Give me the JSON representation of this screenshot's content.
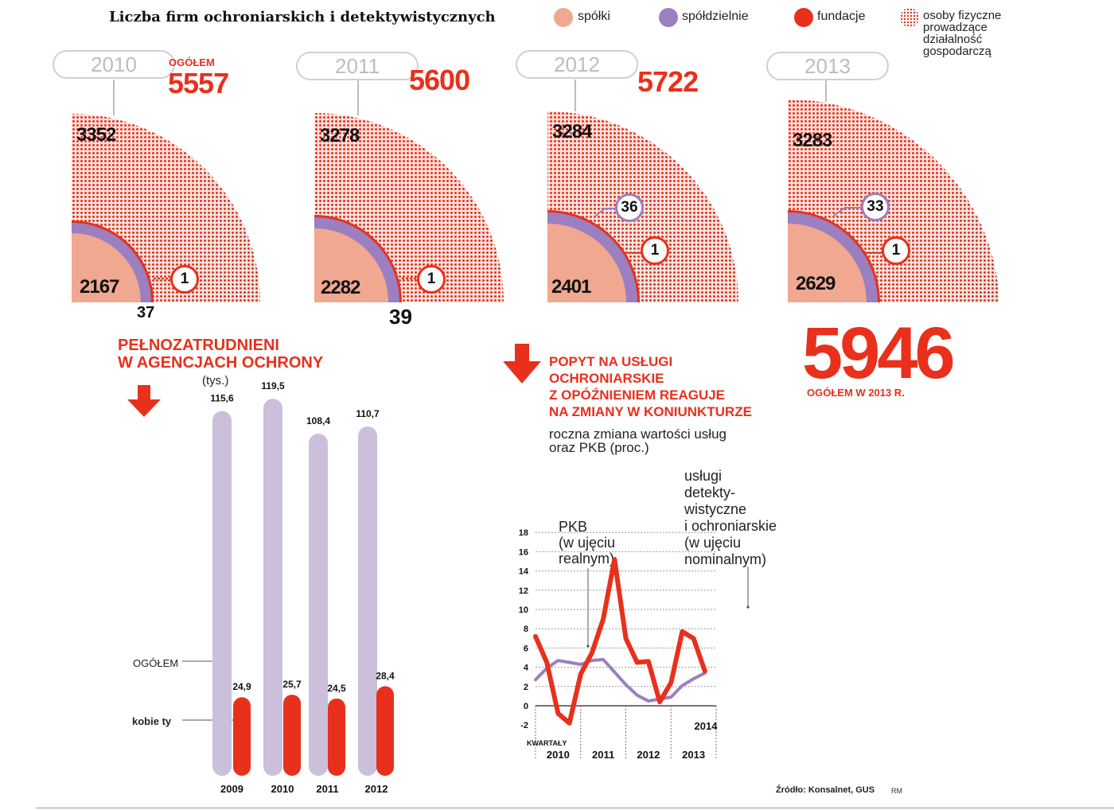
{
  "header": {
    "title": "Liczba firm ochroniarskich i detektywistycznych",
    "legend": [
      {
        "label": "spółki",
        "color": "#f0a890",
        "icon": "salmon-dot-icon"
      },
      {
        "label": "spółdzielnie",
        "color": "#9b7fc0",
        "icon": "purple-dot-icon"
      },
      {
        "label": "fundacje",
        "color": "#e8301c",
        "icon": "red-dot-icon"
      },
      {
        "label_lines": [
          "osoby fizyczne",
          "prowadzące",
          "działalność",
          "gospodarczą"
        ],
        "color": "#e8301c",
        "icon": "dotted-pattern-icon"
      }
    ]
  },
  "colors": {
    "red": "#e8301c",
    "salmon": "#f0a890",
    "purple": "#9b7fc0",
    "lavender": "#cbbfdb",
    "gray": "#d0d0d0"
  },
  "firms": {
    "ogolem_label": "OGÓŁEM",
    "years": [
      {
        "year": "2010",
        "total": "5557",
        "osoby": "3352",
        "spolki": "2167",
        "spoldzielnie": "37",
        "fundacje": "1"
      },
      {
        "year": "2011",
        "total": "5600",
        "osoby": "3278",
        "spolki": "2282",
        "spoldzielnie": "39",
        "fundacje": "1"
      },
      {
        "year": "2012",
        "total": "5722",
        "osoby": "3284",
        "spolki": "2401",
        "spoldzielnie": "36",
        "fundacje": "1"
      },
      {
        "year": "2013",
        "osoby": "3283",
        "spolki": "2629",
        "spoldzielnie": "33",
        "fundacje": "1"
      }
    ],
    "total_2013": "5946",
    "total_2013_label": "OGÓŁEM W 2013 R."
  },
  "employment": {
    "heading_lines": [
      "PEŁNOZATRUDNIENI",
      "W AGENCJACH OCHRONY"
    ],
    "unit": "(tys.)",
    "ogolem_label": "OGÓŁEM",
    "kobiety_label": "kobie ty"
  },
  "demand": {
    "heading_lines": [
      "POPYT NA USŁUGI",
      "OCHRONIARSKIE",
      "Z OPÓŹNIENIEM REAGUJE",
      "NA ZMIANY W KONIUNKTURZE"
    ],
    "subtitle_lines": [
      "roczna zmiana wartości usług",
      "oraz PKB (proc.)"
    ],
    "pkb_label_lines": [
      "PKB",
      "(w ujęciu",
      "realnym)"
    ],
    "services_label_lines": [
      "usługi",
      "detekty-",
      "wistyczne",
      "i ochroniarskie",
      "(w ujęciu",
      "nominalnym)"
    ],
    "kwartaly_label": "KWARTAŁY"
  },
  "chart_data": [
    {
      "type": "bar",
      "title": "PEŁNOZATRUDNIENI W AGENCJACH OCHRONY",
      "ylabel": "(tys.)",
      "categories": [
        "2009",
        "2010",
        "2011",
        "2012"
      ],
      "series": [
        {
          "name": "OGÓŁEM",
          "color": "#cbbfdb",
          "values": [
            115.6,
            119.5,
            108.4,
            110.7
          ],
          "labels": [
            "115,6",
            "119,5",
            "108,4",
            "110,7"
          ]
        },
        {
          "name": "kobiety",
          "color": "#e8301c",
          "values": [
            24.9,
            25.7,
            24.5,
            28.4
          ],
          "labels": [
            "24,9",
            "25,7",
            "24,5",
            "28,4"
          ]
        }
      ],
      "ylim": [
        0,
        125
      ]
    },
    {
      "type": "line",
      "title": "roczna zmiana wartości usług oraz PKB (proc.)",
      "xlabel": "KWARTAŁY",
      "ylim": [
        -2,
        18
      ],
      "yticks": [
        -2,
        0,
        2,
        4,
        6,
        8,
        10,
        12,
        14,
        16,
        18
      ],
      "xticks": [
        "2010",
        "2011",
        "2012",
        "2013",
        "2014"
      ],
      "x": [
        "2010Q1",
        "2010Q2",
        "2010Q3",
        "2010Q4",
        "2011Q1",
        "2011Q2",
        "2011Q3",
        "2011Q4",
        "2012Q1",
        "2012Q2",
        "2012Q3",
        "2012Q4",
        "2013Q1",
        "2013Q2",
        "2013Q3",
        "2013Q4",
        "2014Q1"
      ],
      "series": [
        {
          "name": "usługi detektywistyczne i ochroniarskie (w ujęciu nominalnym)",
          "color": "#e8301c",
          "values": [
            7.2,
            4.5,
            -0.8,
            -1.8,
            3.3,
            5.5,
            9.0,
            15.2,
            7.0,
            4.5,
            4.6,
            0.4,
            2.4,
            7.7,
            7.0,
            3.6,
            null
          ]
        },
        {
          "name": "PKB (w ujęciu realnym)",
          "color": "#9b7fc0",
          "values": [
            2.7,
            3.9,
            4.7,
            4.5,
            4.3,
            4.7,
            4.8,
            3.5,
            2.2,
            1.1,
            0.5,
            0.7,
            0.9,
            2.1,
            2.8,
            3.4,
            null
          ]
        }
      ]
    }
  ],
  "footer": {
    "source": "Źródło: Konsalnet, GUS",
    "initials": "RM"
  }
}
